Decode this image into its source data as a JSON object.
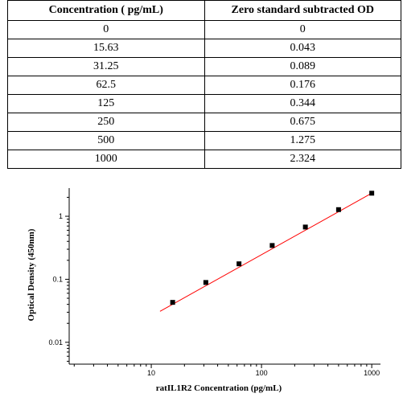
{
  "table": {
    "headers": [
      "Concentration ( pg/mL)",
      "Zero standard subtracted OD"
    ],
    "rows": [
      [
        "0",
        "0"
      ],
      [
        "15.63",
        "0.043"
      ],
      [
        "31.25",
        "0.089"
      ],
      [
        "62.5",
        "0.176"
      ],
      [
        "125",
        "0.344"
      ],
      [
        "250",
        "0.675"
      ],
      [
        "500",
        "1.275"
      ],
      [
        "1000",
        "2.324"
      ]
    ]
  },
  "chart_data": {
    "type": "scatter",
    "xlabel": "ratIL1R2 Concentration (pg/mL)",
    "ylabel": "Optical Density (450nm)",
    "xscale": "log",
    "yscale": "log",
    "xlim": [
      1.8,
      1200
    ],
    "ylim": [
      0.0045,
      2.8
    ],
    "xticks": [
      10,
      100,
      1000
    ],
    "xtick_labels": [
      "10",
      "100",
      "1000"
    ],
    "yticks": [
      0.01,
      0.1,
      1
    ],
    "ytick_labels": [
      "0.01",
      "0.1",
      "1"
    ],
    "grid": false,
    "legend": "none",
    "series": [
      {
        "x": [
          15.63,
          31.25,
          62.5,
          125,
          250,
          500,
          1000
        ],
        "y": [
          0.043,
          0.089,
          0.176,
          0.344,
          0.675,
          1.275,
          2.324
        ],
        "marker_color": "#000000"
      }
    ],
    "fit_line": {
      "x": [
        12,
        1000
      ],
      "y": [
        0.031,
        2.324
      ],
      "color": "#ff0000"
    }
  }
}
